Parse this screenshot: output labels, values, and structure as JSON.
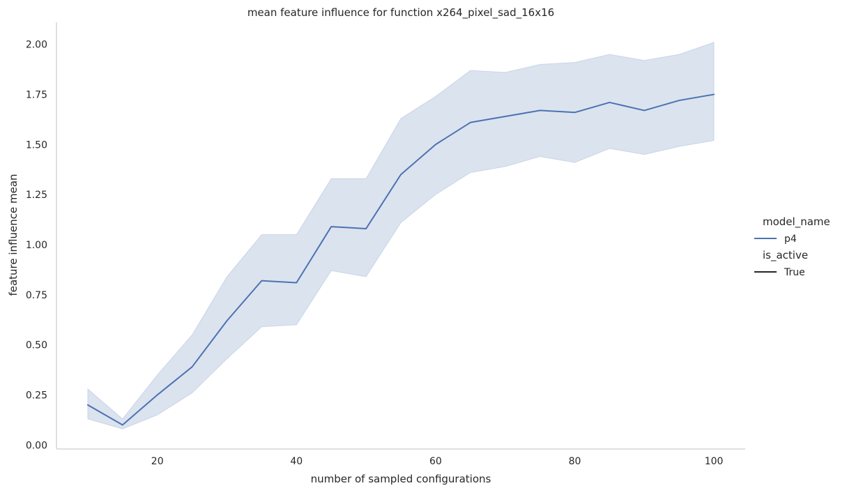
{
  "chart_data": {
    "type": "line",
    "title": "mean feature influence for function x264_pixel_sad_16x16",
    "xlabel": "number of sampled configurations",
    "ylabel": "feature influence mean",
    "xlim": [
      5.5,
      104.5
    ],
    "ylim": [
      -0.02,
      2.11
    ],
    "x_ticks": [
      20,
      40,
      60,
      80,
      100
    ],
    "y_ticks": [
      0.0,
      0.25,
      0.5,
      0.75,
      1.0,
      1.25,
      1.5,
      1.75,
      2.0
    ],
    "x_tick_labels": [
      "20",
      "40",
      "60",
      "80",
      "100"
    ],
    "y_tick_labels": [
      "0.00",
      "0.25",
      "0.50",
      "0.75",
      "1.00",
      "1.25",
      "1.50",
      "1.75",
      "2.00"
    ],
    "grid": false,
    "series": [
      {
        "name": "p4",
        "color": "#4c72b0",
        "band_color": "#4c72b0",
        "x": [
          10,
          15,
          20,
          25,
          30,
          35,
          40,
          45,
          50,
          55,
          60,
          65,
          70,
          75,
          80,
          85,
          90,
          95,
          100
        ],
        "values": [
          0.2,
          0.1,
          0.25,
          0.39,
          0.62,
          0.82,
          0.81,
          1.09,
          1.08,
          1.35,
          1.5,
          1.61,
          1.64,
          1.67,
          1.66,
          1.71,
          1.67,
          1.72,
          1.75
        ],
        "lower": [
          0.13,
          0.08,
          0.15,
          0.26,
          0.43,
          0.59,
          0.6,
          0.87,
          0.84,
          1.11,
          1.25,
          1.36,
          1.39,
          1.44,
          1.41,
          1.48,
          1.45,
          1.49,
          1.52
        ],
        "upper": [
          0.28,
          0.13,
          0.35,
          0.55,
          0.84,
          1.05,
          1.05,
          1.33,
          1.33,
          1.63,
          1.74,
          1.87,
          1.86,
          1.9,
          1.91,
          1.95,
          1.92,
          1.95,
          2.01
        ]
      }
    ],
    "legend": {
      "position": "right",
      "entries": [
        {
          "kind": "header",
          "label": "model_name"
        },
        {
          "kind": "line",
          "label": "p4",
          "color": "#4c72b0"
        },
        {
          "kind": "header",
          "label": "is_active"
        },
        {
          "kind": "line",
          "label": "True",
          "color": "#262626"
        }
      ]
    }
  }
}
